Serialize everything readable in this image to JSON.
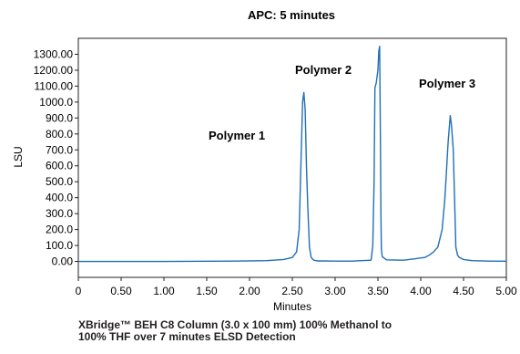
{
  "chart_data": {
    "type": "line",
    "title": "APC: 5 minutes",
    "xlabel": "Minutes",
    "ylabel": "LSU",
    "xlim": [
      0,
      5
    ],
    "ylim": [
      -100,
      1400
    ],
    "x_ticks": [
      0,
      0.5,
      1.0,
      1.5,
      2.0,
      2.5,
      3.0,
      3.5,
      4.0,
      4.5,
      5.0
    ],
    "x_tick_labels": [
      "0",
      "0.50",
      "1.00",
      "1.50",
      "2.00",
      "2.50",
      "3.00",
      "3.50",
      "4.00",
      "4.50",
      "5.00"
    ],
    "y_ticks": [
      0,
      100,
      200,
      300,
      400,
      500,
      600,
      700,
      800,
      900,
      1000,
      1100,
      1200,
      1300
    ],
    "y_tick_labels": [
      "0.00",
      "100.0",
      "200.0",
      "300.0",
      "400.0",
      "500.0",
      "600.0",
      "700.0",
      "800.0",
      "900.0",
      "1000.0",
      "1100.00",
      "1200.00",
      "1300.00"
    ],
    "grid": false,
    "line_color": "#1f6fb5",
    "series": [
      {
        "x": [
          0,
          1.0,
          1.8,
          2.2,
          2.4,
          2.5,
          2.55,
          2.58,
          2.6,
          2.62,
          2.635,
          2.65,
          2.665,
          2.68,
          2.7,
          2.72,
          2.75,
          2.8,
          3.0,
          3.2,
          3.42,
          3.44,
          3.455,
          3.465,
          3.48,
          3.5,
          3.51,
          3.52,
          3.53,
          3.535,
          3.54,
          3.55,
          3.6,
          3.8,
          3.95,
          4.0,
          4.05,
          4.1,
          4.15,
          4.2,
          4.25,
          4.28,
          4.3,
          4.32,
          4.345,
          4.36,
          4.38,
          4.395,
          4.41,
          4.43,
          4.45,
          4.5,
          4.6,
          4.8,
          5.0
        ],
        "y": [
          0,
          0,
          2,
          5,
          12,
          25,
          60,
          200,
          600,
          1000,
          1060,
          950,
          600,
          350,
          90,
          25,
          8,
          3,
          2,
          2,
          8,
          100,
          500,
          1090,
          1120,
          1200,
          1320,
          1350,
          700,
          300,
          80,
          30,
          10,
          8,
          18,
          22,
          25,
          40,
          60,
          90,
          200,
          380,
          560,
          750,
          915,
          850,
          700,
          400,
          90,
          40,
          25,
          12,
          5,
          2,
          1
        ]
      }
    ],
    "annotations": [
      "Polymer 1",
      "Polymer 2",
      "Polymer 3"
    ]
  },
  "caption": {
    "line1": "XBridge™ BEH C8 Column (3.0 x 100 mm) 100% Methanol to",
    "line2": "100% THF over 7 minutes ELSD Detection"
  }
}
